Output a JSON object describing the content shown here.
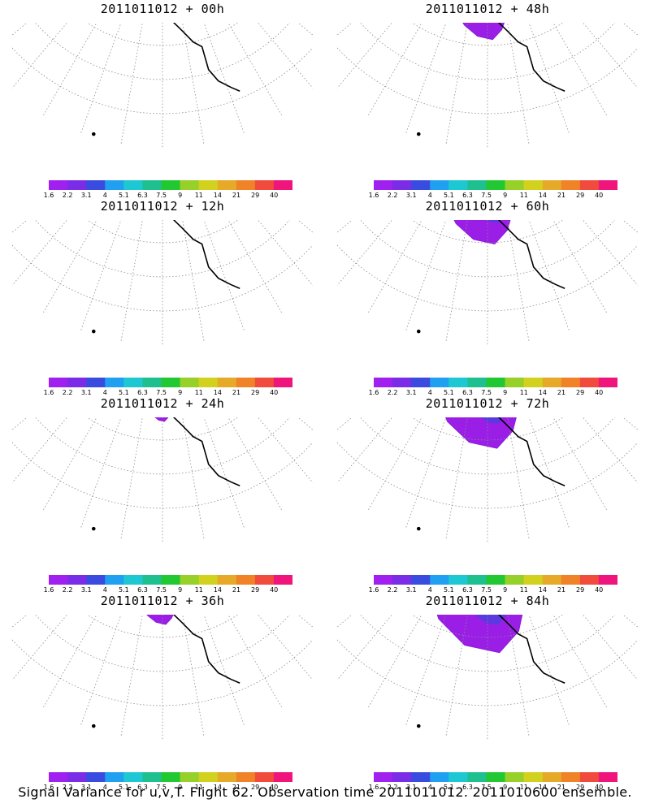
{
  "panels": [
    {
      "title": "2011011012 + 00h",
      "extent": 0.0
    },
    {
      "title": "2011011012 + 48h",
      "extent": 0.45
    },
    {
      "title": "2011011012 + 12h",
      "extent": 0.08
    },
    {
      "title": "2011011012 + 60h",
      "extent": 0.6
    },
    {
      "title": "2011011012 + 24h",
      "extent": 0.18
    },
    {
      "title": "2011011012 + 72h",
      "extent": 0.75
    },
    {
      "title": "2011011012 + 36h",
      "extent": 0.3
    },
    {
      "title": "2011011012 + 84h",
      "extent": 0.9
    }
  ],
  "colorbar": {
    "labels": [
      "1.6",
      "2.2",
      "3.1",
      "4",
      "5.1",
      "6.3",
      "7.5",
      "9",
      "11",
      "14",
      "21",
      "29",
      "40"
    ],
    "colors": [
      "#a020f0",
      "#7a2ce6",
      "#3a4be0",
      "#1fa0f0",
      "#1ec8d2",
      "#1ec090",
      "#22c832",
      "#96d028",
      "#d2d21e",
      "#e6aa28",
      "#f08228",
      "#f04b3c",
      "#f0147d"
    ]
  },
  "caption": "Signal Variance for u,v,T. Flight 62. Observation time 2011011012. 2011010600 ensemble."
}
